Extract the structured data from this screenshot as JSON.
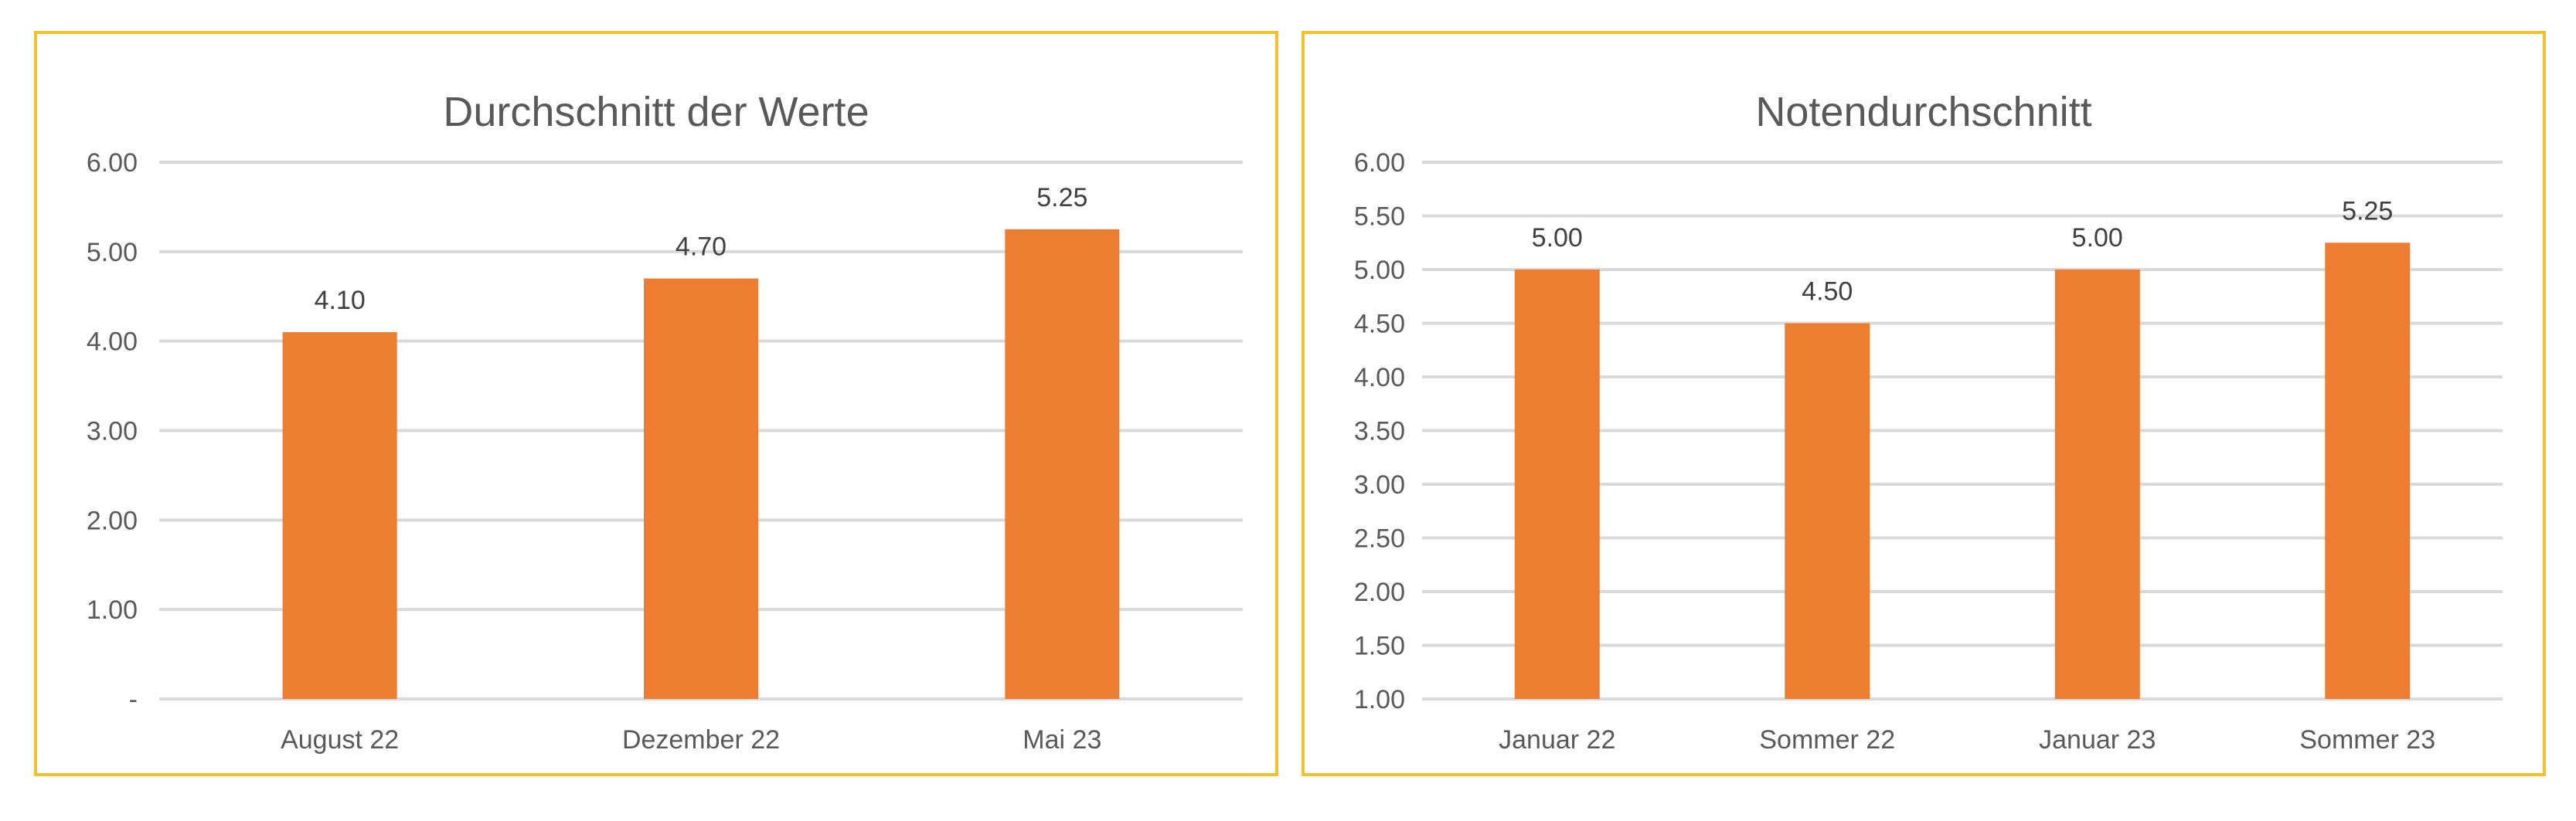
{
  "chart_data": [
    {
      "type": "bar",
      "title": "Durchschnitt der Werte",
      "categories": [
        "August 22",
        "Dezember 22",
        "Mai 23"
      ],
      "values": [
        4.1,
        4.7,
        5.25
      ],
      "value_labels": [
        "4.10",
        "4.70",
        "5.25"
      ],
      "ylim": [
        0,
        6
      ],
      "yticks": [
        0,
        1,
        2,
        3,
        4,
        5,
        6
      ],
      "ytick_labels": [
        "-",
        "1.00",
        "2.00",
        "3.00",
        "4.00",
        "5.00",
        "6.00"
      ],
      "xlabel": "",
      "ylabel": "",
      "grid": true,
      "color": "#ed7d31"
    },
    {
      "type": "bar",
      "title": "Notendurchschnitt",
      "categories": [
        "Januar 22",
        "Sommer 22",
        "Januar 23",
        "Sommer 23"
      ],
      "values": [
        5.0,
        4.5,
        5.0,
        5.25
      ],
      "value_labels": [
        "5.00",
        "4.50",
        "5.00",
        "5.25"
      ],
      "ylim": [
        1,
        6
      ],
      "yticks": [
        1.0,
        1.5,
        2.0,
        2.5,
        3.0,
        3.5,
        4.0,
        4.5,
        5.0,
        5.5,
        6.0
      ],
      "ytick_labels": [
        "1.00",
        "1.50",
        "2.00",
        "2.50",
        "3.00",
        "3.50",
        "4.00",
        "4.50",
        "5.00",
        "5.50",
        "6.00"
      ],
      "xlabel": "",
      "ylabel": "",
      "grid": true,
      "color": "#ed7d31"
    }
  ],
  "colors": {
    "frame": "#f2c12e",
    "grid": "#d9d9d9",
    "text": "#595959",
    "bar": "#ed7d31"
  }
}
